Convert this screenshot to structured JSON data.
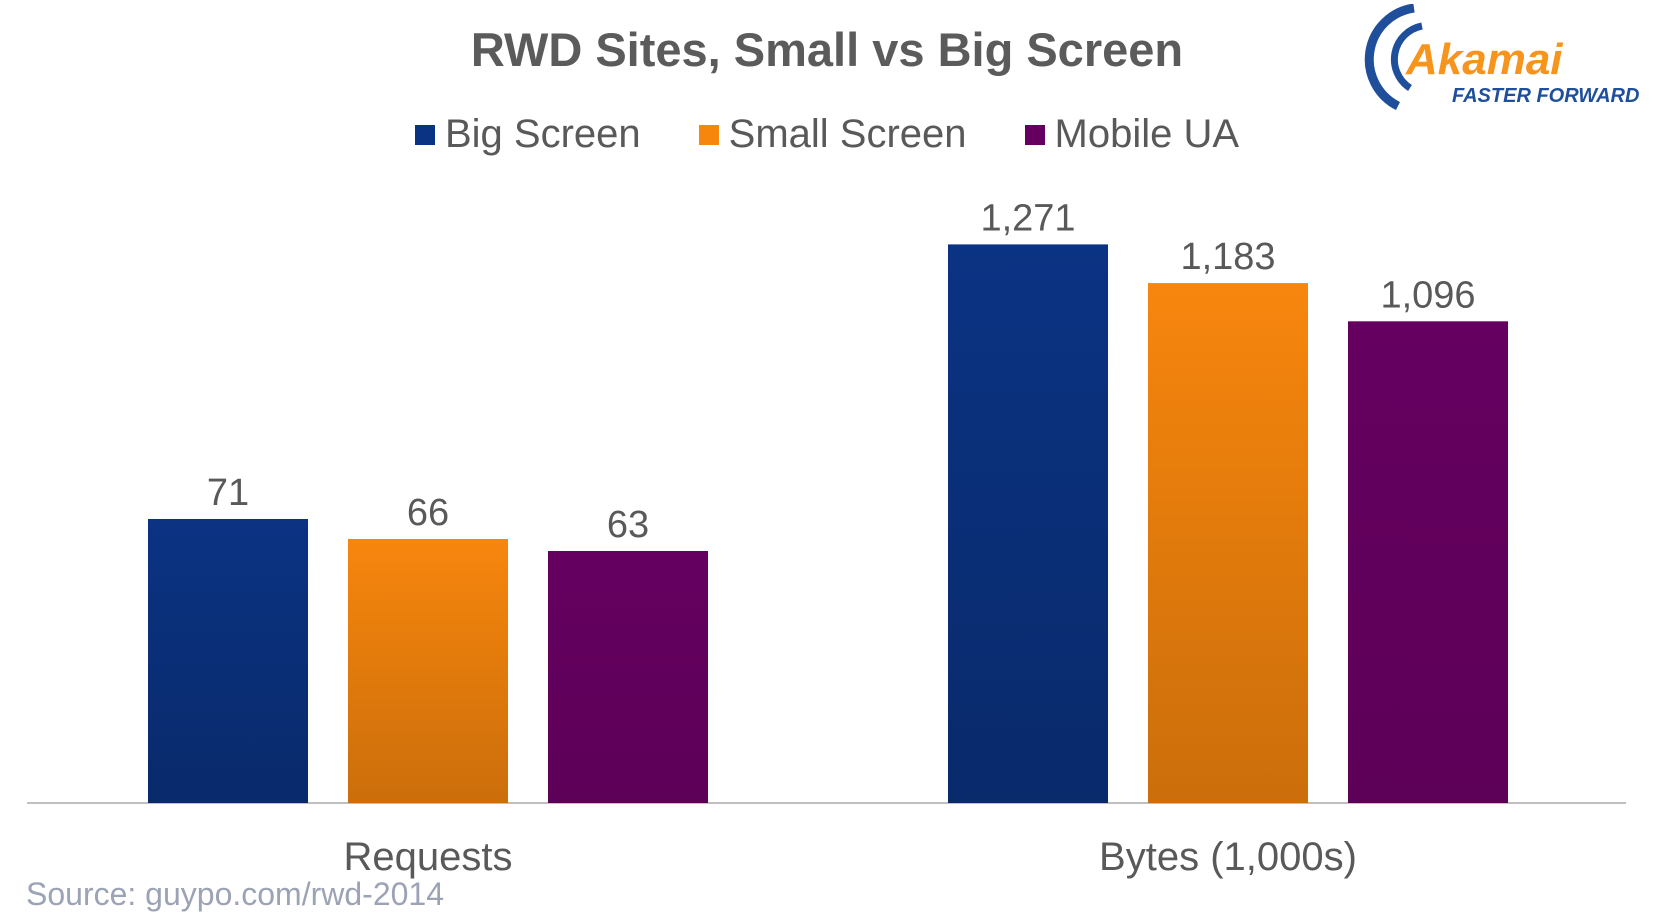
{
  "chart_data": {
    "type": "bar",
    "title": "RWD Sites, Small vs Big Screen",
    "categories": [
      "Requests",
      "Bytes (1,000s)"
    ],
    "series": [
      {
        "name": "Big Screen",
        "color": "#0b3383",
        "values": [
          71,
          1271
        ],
        "labels": [
          "71",
          "1,271"
        ]
      },
      {
        "name": "Small Screen",
        "color": "#f7860d",
        "values": [
          66,
          1183
        ],
        "labels": [
          "66",
          "1,183"
        ]
      },
      {
        "name": "Mobile UA",
        "color": "#650060",
        "values": [
          63,
          1096
        ],
        "labels": [
          "63",
          "1,096"
        ]
      }
    ],
    "legend_position": "top",
    "grid": false,
    "note": "Each category group uses its own scale"
  },
  "logo": {
    "brand": "Akamai",
    "tagline": "FASTER FORWARD",
    "color": "#f7941d",
    "tagline_color": "#1f4e9b"
  },
  "source": "Source: guypo.com/rwd-2014"
}
